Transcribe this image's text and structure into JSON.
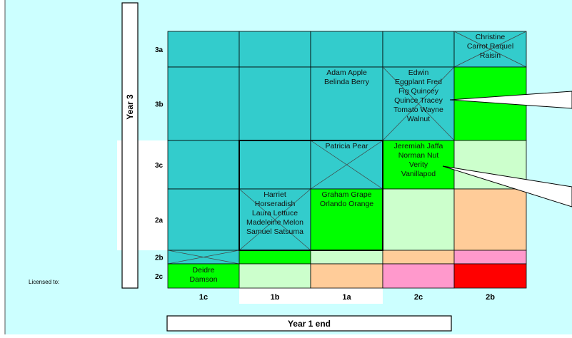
{
  "chart_data": {
    "type": "heatmap",
    "licensed_to_label": "Licensed to:",
    "x_axis_title": "Year 1 end",
    "y_axis_title": "Year 3",
    "x_categories": [
      "1c",
      "1b",
      "1a",
      "2c",
      "2b"
    ],
    "y_categories": [
      "3a",
      "3b",
      "3c",
      "2a",
      "2b",
      "2c"
    ],
    "colors": {
      "teal": "#33cccc",
      "green": "#00ff00",
      "light_green": "#ccffcc",
      "peach": "#ffcc99",
      "pink": "#ff99cc",
      "red": "#ff0000",
      "background": "#ccffff"
    },
    "cells": [
      {
        "row": "3a",
        "col": "1c",
        "fill": "teal",
        "crossed": false,
        "text": ""
      },
      {
        "row": "3a",
        "col": "1b",
        "fill": "teal",
        "crossed": false,
        "text": ""
      },
      {
        "row": "3a",
        "col": "1a",
        "fill": "teal",
        "crossed": false,
        "text": ""
      },
      {
        "row": "3a",
        "col": "2c",
        "fill": "teal",
        "crossed": false,
        "text": ""
      },
      {
        "row": "3a",
        "col": "2b",
        "fill": "teal",
        "crossed": true,
        "text": "Christine\nCarrot  Raquel\nRaisin"
      },
      {
        "row": "3b",
        "col": "1c",
        "fill": "teal",
        "crossed": false,
        "text": ""
      },
      {
        "row": "3b",
        "col": "1b",
        "fill": "teal",
        "crossed": false,
        "text": ""
      },
      {
        "row": "3b",
        "col": "1a",
        "fill": "teal",
        "crossed": false,
        "text": "Adam Apple\nBelinda Berry"
      },
      {
        "row": "3b",
        "col": "2c",
        "fill": "teal",
        "crossed": true,
        "text": "Edwin\nEggplant  Fred\nFig  Quincey\nQuince  Tracey\nTomato  Wayne\nWalnut"
      },
      {
        "row": "3b",
        "col": "2b",
        "fill": "green",
        "crossed": false,
        "text": ""
      },
      {
        "row": "3c",
        "col": "1c",
        "fill": "teal",
        "crossed": false,
        "text": ""
      },
      {
        "row": "3c",
        "col": "1b",
        "fill": "teal",
        "crossed": false,
        "text": ""
      },
      {
        "row": "3c",
        "col": "1a",
        "fill": "teal",
        "crossed": true,
        "text": "Patricia  Pear"
      },
      {
        "row": "3c",
        "col": "2c",
        "fill": "green",
        "crossed": false,
        "text": "Jeremiah Jaffa\nNorman  Nut\nVerity\nVanillapod"
      },
      {
        "row": "3c",
        "col": "2b",
        "fill": "light_green",
        "crossed": false,
        "text": ""
      },
      {
        "row": "2a",
        "col": "1c",
        "fill": "teal",
        "crossed": false,
        "text": ""
      },
      {
        "row": "2a",
        "col": "1b",
        "fill": "teal",
        "crossed": true,
        "text": "Harriet\nHorseradish\nLaura Lettuce\nMadeleine Melon\nSamuel Satsuma"
      },
      {
        "row": "2a",
        "col": "1a",
        "fill": "green",
        "crossed": false,
        "text": "Graham Grape\nOrlando Orange"
      },
      {
        "row": "2a",
        "col": "2c",
        "fill": "light_green",
        "crossed": false,
        "text": ""
      },
      {
        "row": "2a",
        "col": "2b",
        "fill": "peach",
        "crossed": false,
        "text": ""
      },
      {
        "row": "2b",
        "col": "1c",
        "fill": "teal",
        "crossed": true,
        "text": ""
      },
      {
        "row": "2b",
        "col": "1b",
        "fill": "green",
        "crossed": false,
        "text": ""
      },
      {
        "row": "2b",
        "col": "1a",
        "fill": "light_green",
        "crossed": false,
        "text": ""
      },
      {
        "row": "2b",
        "col": "2c",
        "fill": "peach",
        "crossed": false,
        "text": ""
      },
      {
        "row": "2b",
        "col": "2b",
        "fill": "pink",
        "crossed": false,
        "text": ""
      },
      {
        "row": "2c",
        "col": "1c",
        "fill": "green",
        "crossed": false,
        "text": "Deidre\nDamson"
      },
      {
        "row": "2c",
        "col": "1b",
        "fill": "light_green",
        "crossed": false,
        "text": ""
      },
      {
        "row": "2c",
        "col": "1a",
        "fill": "peach",
        "crossed": false,
        "text": ""
      },
      {
        "row": "2c",
        "col": "2c",
        "fill": "pink",
        "crossed": false,
        "text": ""
      },
      {
        "row": "2c",
        "col": "2b",
        "fill": "red",
        "crossed": false,
        "text": ""
      }
    ],
    "highlight_box": {
      "rows": [
        "3c",
        "2a"
      ],
      "cols": [
        "1b",
        "1a"
      ]
    },
    "callouts": [
      {
        "from_row": "3b",
        "from_col": "2c",
        "label": ""
      },
      {
        "from_row": "3c",
        "from_col": "2c",
        "label": ""
      }
    ]
  }
}
